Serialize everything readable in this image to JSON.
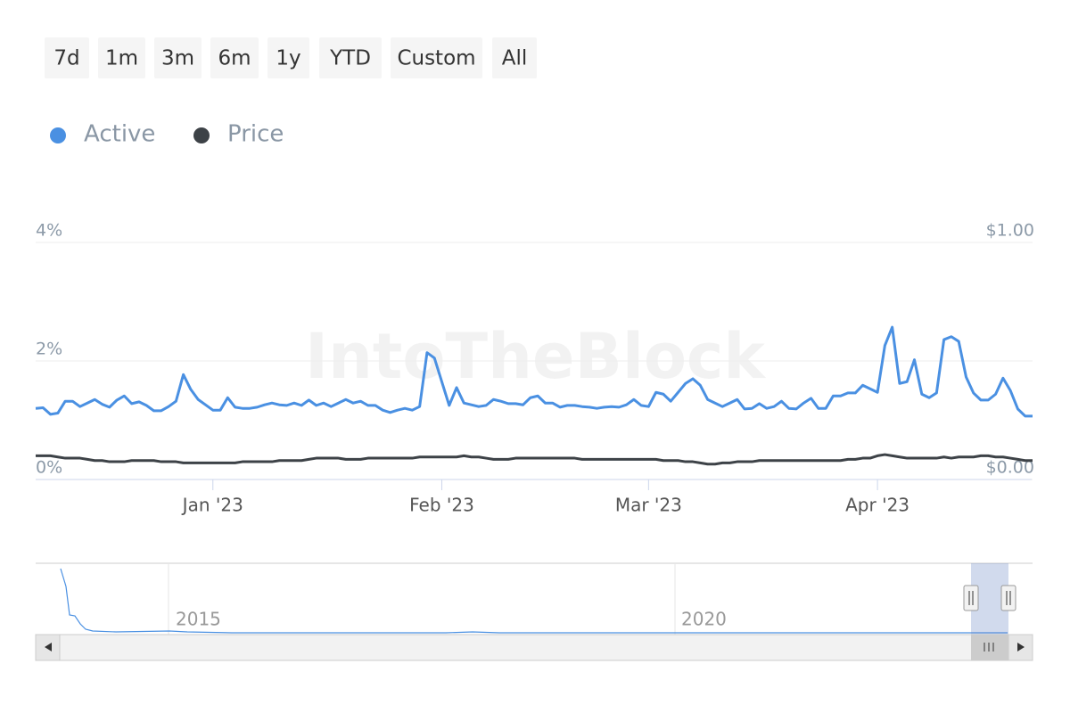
{
  "range_buttons": [
    "7d",
    "1m",
    "3m",
    "6m",
    "1y",
    "YTD",
    "Custom",
    "All"
  ],
  "watermark": "IntoTheBlock",
  "navigator": {
    "labels": [
      "2015",
      "2020"
    ]
  },
  "chart_data": {
    "type": "line",
    "legend": "top-left",
    "grid": true,
    "categories": [
      null,
      null,
      null,
      null,
      null,
      null,
      null,
      null,
      null,
      null,
      null,
      null,
      null,
      null,
      null,
      null,
      null,
      null,
      null,
      null,
      null,
      null,
      null,
      null,
      "Jan '23",
      null,
      null,
      null,
      null,
      null,
      null,
      null,
      null,
      null,
      null,
      null,
      null,
      null,
      null,
      null,
      null,
      null,
      null,
      null,
      null,
      null,
      null,
      null,
      null,
      null,
      null,
      null,
      null,
      null,
      null,
      "Feb '23",
      null,
      null,
      null,
      null,
      null,
      null,
      null,
      null,
      null,
      null,
      null,
      null,
      null,
      null,
      null,
      null,
      null,
      null,
      null,
      null,
      null,
      null,
      null,
      null,
      null,
      null,
      null,
      "Mar '23",
      null,
      null,
      null,
      null,
      null,
      null,
      null,
      null,
      null,
      null,
      null,
      null,
      null,
      null,
      null,
      null,
      null,
      null,
      null,
      null,
      null,
      null,
      null,
      null,
      null,
      null,
      null,
      null,
      null,
      null,
      "Apr '23",
      null,
      null,
      null,
      null,
      null,
      null,
      null,
      null,
      null,
      null,
      null,
      null,
      null,
      null,
      null,
      null,
      null,
      null,
      null,
      null,
      null
    ],
    "series": [
      {
        "name": "Active",
        "color": "#4a90e2",
        "axis": "y",
        "values": [
          1.2,
          1.21,
          1.1,
          1.12,
          1.32,
          1.32,
          1.23,
          1.29,
          1.35,
          1.27,
          1.22,
          1.34,
          1.41,
          1.28,
          1.31,
          1.25,
          1.16,
          1.16,
          1.23,
          1.32,
          1.77,
          1.52,
          1.35,
          1.26,
          1.17,
          1.17,
          1.38,
          1.22,
          1.2,
          1.2,
          1.22,
          1.26,
          1.29,
          1.26,
          1.25,
          1.29,
          1.25,
          1.34,
          1.25,
          1.29,
          1.23,
          1.29,
          1.35,
          1.29,
          1.32,
          1.25,
          1.25,
          1.17,
          1.13,
          1.17,
          1.2,
          1.17,
          1.23,
          2.14,
          2.05,
          1.65,
          1.25,
          1.55,
          1.29,
          1.26,
          1.23,
          1.25,
          1.35,
          1.32,
          1.28,
          1.28,
          1.26,
          1.38,
          1.41,
          1.29,
          1.29,
          1.22,
          1.25,
          1.25,
          1.23,
          1.22,
          1.2,
          1.22,
          1.23,
          1.22,
          1.26,
          1.35,
          1.25,
          1.23,
          1.47,
          1.44,
          1.32,
          1.47,
          1.62,
          1.7,
          1.59,
          1.35,
          1.29,
          1.23,
          1.29,
          1.35,
          1.19,
          1.2,
          1.28,
          1.2,
          1.23,
          1.32,
          1.2,
          1.19,
          1.29,
          1.37,
          1.2,
          1.2,
          1.41,
          1.41,
          1.46,
          1.46,
          1.59,
          1.53,
          1.47,
          2.26,
          2.57,
          1.62,
          1.65,
          2.02,
          1.44,
          1.38,
          1.46,
          2.36,
          2.41,
          2.33,
          1.73,
          1.46,
          1.34,
          1.34,
          1.44,
          1.71,
          1.5,
          1.19,
          1.07,
          1.07
        ]
      },
      {
        "name": "Price",
        "color": "#3d4247",
        "axis": "y2",
        "values": [
          0.1,
          0.1,
          0.1,
          0.095,
          0.09,
          0.09,
          0.09,
          0.085,
          0.08,
          0.08,
          0.075,
          0.075,
          0.075,
          0.08,
          0.08,
          0.08,
          0.08,
          0.075,
          0.075,
          0.075,
          0.07,
          0.07,
          0.07,
          0.07,
          0.07,
          0.07,
          0.07,
          0.07,
          0.075,
          0.075,
          0.075,
          0.075,
          0.075,
          0.08,
          0.08,
          0.08,
          0.08,
          0.085,
          0.09,
          0.09,
          0.09,
          0.09,
          0.085,
          0.085,
          0.085,
          0.09,
          0.09,
          0.09,
          0.09,
          0.09,
          0.09,
          0.09,
          0.095,
          0.095,
          0.095,
          0.095,
          0.095,
          0.095,
          0.1,
          0.095,
          0.095,
          0.09,
          0.085,
          0.085,
          0.085,
          0.09,
          0.09,
          0.09,
          0.09,
          0.09,
          0.09,
          0.09,
          0.09,
          0.09,
          0.085,
          0.085,
          0.085,
          0.085,
          0.085,
          0.085,
          0.085,
          0.085,
          0.085,
          0.085,
          0.085,
          0.08,
          0.08,
          0.08,
          0.075,
          0.075,
          0.07,
          0.065,
          0.065,
          0.07,
          0.07,
          0.075,
          0.075,
          0.075,
          0.08,
          0.08,
          0.08,
          0.08,
          0.08,
          0.08,
          0.08,
          0.08,
          0.08,
          0.08,
          0.08,
          0.08,
          0.085,
          0.085,
          0.09,
          0.09,
          0.1,
          0.105,
          0.1,
          0.095,
          0.09,
          0.09,
          0.09,
          0.09,
          0.09,
          0.095,
          0.09,
          0.095,
          0.095,
          0.095,
          0.1,
          0.1,
          0.095,
          0.095,
          0.09,
          0.085,
          0.08,
          0.08
        ]
      }
    ],
    "ylim": [
      0,
      4
    ],
    "yticks": [
      {
        "value": 0,
        "label": "0%"
      },
      {
        "value": 2,
        "label": "2%"
      },
      {
        "value": 4,
        "label": "4%"
      }
    ],
    "y2lim": [
      0,
      1
    ],
    "y2ticks": [
      {
        "value": 0,
        "label": "$0.00"
      },
      {
        "value": 1,
        "label": "$1.00"
      }
    ]
  }
}
